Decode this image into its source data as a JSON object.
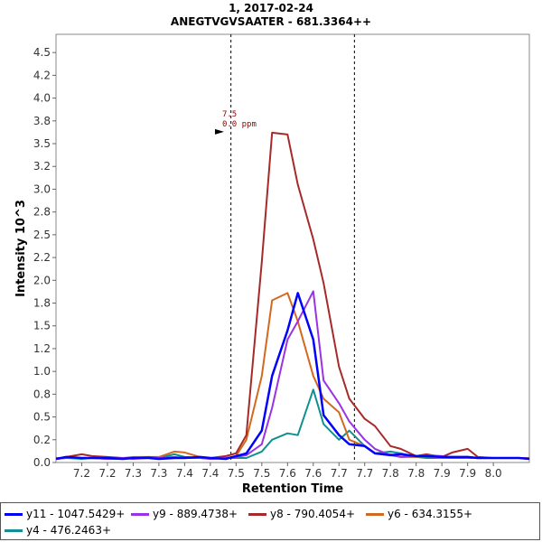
{
  "chart_data": {
    "type": "line",
    "title": "1, 2017-02-24",
    "subtitle": "ANEGTVGVSAATER - 681.3364++",
    "xlabel": "Retention Time",
    "ylabel": "Intensity 10^3",
    "xlim": [
      7.15,
      8.07
    ],
    "ylim": [
      0,
      4.7
    ],
    "xticks": [
      "7.2",
      "7.2",
      "7.3",
      "7.3",
      "7.4",
      "7.4",
      "7.5",
      "7.5",
      "7.6",
      "7.6",
      "7.7",
      "7.7",
      "7.8",
      "7.8",
      "7.9",
      "7.9",
      "8.0"
    ],
    "yticks": [
      "0.0",
      "0.2",
      "0.5",
      "0.8",
      "1.0",
      "1.2",
      "1.5",
      "1.8",
      "2.0",
      "2.2",
      "2.5",
      "2.8",
      "3.0",
      "3.2",
      "3.5",
      "3.8",
      "4.0",
      "4.2",
      "4.5"
    ],
    "boundaries": [
      7.49,
      7.73
    ],
    "annotation": {
      "x": 7.48,
      "y": 3.62,
      "line1": "7.5",
      "line2": "0.0 ppm"
    },
    "series": [
      {
        "name": "y11 - 1047.5429+",
        "color": "#0000ff",
        "x": [
          7.15,
          7.17,
          7.2,
          7.22,
          7.25,
          7.28,
          7.3,
          7.33,
          7.35,
          7.38,
          7.4,
          7.43,
          7.45,
          7.48,
          7.5,
          7.52,
          7.55,
          7.57,
          7.6,
          7.62,
          7.65,
          7.67,
          7.7,
          7.72,
          7.75,
          7.77,
          7.8,
          7.82,
          7.85,
          7.87,
          7.9,
          7.92,
          7.95,
          7.97,
          8.0,
          8.02,
          8.05,
          8.07
        ],
        "y": [
          0.04,
          0.06,
          0.05,
          0.05,
          0.05,
          0.04,
          0.05,
          0.05,
          0.04,
          0.05,
          0.05,
          0.06,
          0.05,
          0.04,
          0.07,
          0.1,
          0.35,
          0.95,
          1.45,
          1.86,
          1.35,
          0.52,
          0.3,
          0.2,
          0.18,
          0.1,
          0.08,
          0.09,
          0.07,
          0.07,
          0.06,
          0.06,
          0.06,
          0.05,
          0.05,
          0.05,
          0.05,
          0.04
        ]
      },
      {
        "name": "y9 - 889.4738+",
        "color": "#9a32e6",
        "x": [
          7.15,
          7.17,
          7.2,
          7.22,
          7.25,
          7.28,
          7.3,
          7.33,
          7.35,
          7.38,
          7.4,
          7.43,
          7.45,
          7.48,
          7.5,
          7.52,
          7.55,
          7.57,
          7.6,
          7.62,
          7.65,
          7.67,
          7.7,
          7.72,
          7.75,
          7.77,
          7.8,
          7.82,
          7.85,
          7.87,
          7.9,
          7.92,
          7.95,
          7.97,
          8.0,
          8.02,
          8.05,
          8.07
        ],
        "y": [
          0.04,
          0.05,
          0.05,
          0.05,
          0.04,
          0.05,
          0.04,
          0.05,
          0.05,
          0.06,
          0.05,
          0.05,
          0.04,
          0.05,
          0.06,
          0.08,
          0.2,
          0.6,
          1.35,
          1.55,
          1.88,
          0.9,
          0.65,
          0.45,
          0.25,
          0.15,
          0.08,
          0.06,
          0.07,
          0.08,
          0.07,
          0.05,
          0.06,
          0.05,
          0.05,
          0.05,
          0.05,
          0.04
        ]
      },
      {
        "name": "y8 - 790.4054+",
        "color": "#a52a2a",
        "x": [
          7.15,
          7.17,
          7.2,
          7.22,
          7.25,
          7.28,
          7.3,
          7.33,
          7.35,
          7.38,
          7.4,
          7.43,
          7.45,
          7.48,
          7.5,
          7.52,
          7.55,
          7.57,
          7.6,
          7.62,
          7.65,
          7.67,
          7.7,
          7.72,
          7.75,
          7.77,
          7.8,
          7.82,
          7.85,
          7.87,
          7.9,
          7.92,
          7.95,
          7.97,
          8.0,
          8.02,
          8.05,
          8.07
        ],
        "y": [
          0.04,
          0.06,
          0.09,
          0.07,
          0.06,
          0.05,
          0.05,
          0.06,
          0.05,
          0.05,
          0.06,
          0.05,
          0.05,
          0.07,
          0.1,
          0.3,
          2.2,
          3.62,
          3.6,
          3.05,
          2.45,
          1.97,
          1.05,
          0.7,
          0.48,
          0.4,
          0.18,
          0.15,
          0.07,
          0.09,
          0.06,
          0.11,
          0.15,
          0.06,
          0.05,
          0.05,
          0.05,
          0.04
        ]
      },
      {
        "name": "y6 - 634.3155+",
        "color": "#d2691e",
        "x": [
          7.15,
          7.17,
          7.2,
          7.22,
          7.25,
          7.28,
          7.3,
          7.33,
          7.35,
          7.38,
          7.4,
          7.43,
          7.45,
          7.48,
          7.5,
          7.52,
          7.55,
          7.57,
          7.6,
          7.62,
          7.65,
          7.67,
          7.7,
          7.72,
          7.75,
          7.77,
          7.8,
          7.82,
          7.85,
          7.87,
          7.9,
          7.92,
          7.95,
          7.97,
          8.0,
          8.02,
          8.05,
          8.07
        ],
        "y": [
          0.05,
          0.05,
          0.05,
          0.05,
          0.05,
          0.05,
          0.06,
          0.06,
          0.06,
          0.12,
          0.11,
          0.06,
          0.05,
          0.05,
          0.07,
          0.25,
          0.95,
          1.78,
          1.86,
          1.55,
          0.95,
          0.7,
          0.55,
          0.25,
          0.18,
          0.1,
          0.09,
          0.06,
          0.06,
          0.07,
          0.05,
          0.06,
          0.06,
          0.05,
          0.05,
          0.05,
          0.05,
          0.05
        ]
      },
      {
        "name": "y4 - 476.2463+",
        "color": "#109090",
        "x": [
          7.15,
          7.17,
          7.2,
          7.22,
          7.25,
          7.28,
          7.3,
          7.33,
          7.35,
          7.38,
          7.4,
          7.43,
          7.45,
          7.48,
          7.5,
          7.52,
          7.55,
          7.57,
          7.6,
          7.62,
          7.65,
          7.67,
          7.7,
          7.72,
          7.75,
          7.77,
          7.8,
          7.82,
          7.85,
          7.87,
          7.9,
          7.92,
          7.95,
          7.97,
          8.0,
          8.02,
          8.05,
          8.07
        ],
        "y": [
          0.04,
          0.05,
          0.04,
          0.05,
          0.04,
          0.04,
          0.05,
          0.05,
          0.05,
          0.09,
          0.06,
          0.05,
          0.04,
          0.05,
          0.05,
          0.05,
          0.12,
          0.25,
          0.32,
          0.3,
          0.8,
          0.42,
          0.25,
          0.35,
          0.18,
          0.1,
          0.12,
          0.1,
          0.06,
          0.05,
          0.05,
          0.05,
          0.05,
          0.05,
          0.05,
          0.05,
          0.05,
          0.05
        ]
      }
    ]
  }
}
